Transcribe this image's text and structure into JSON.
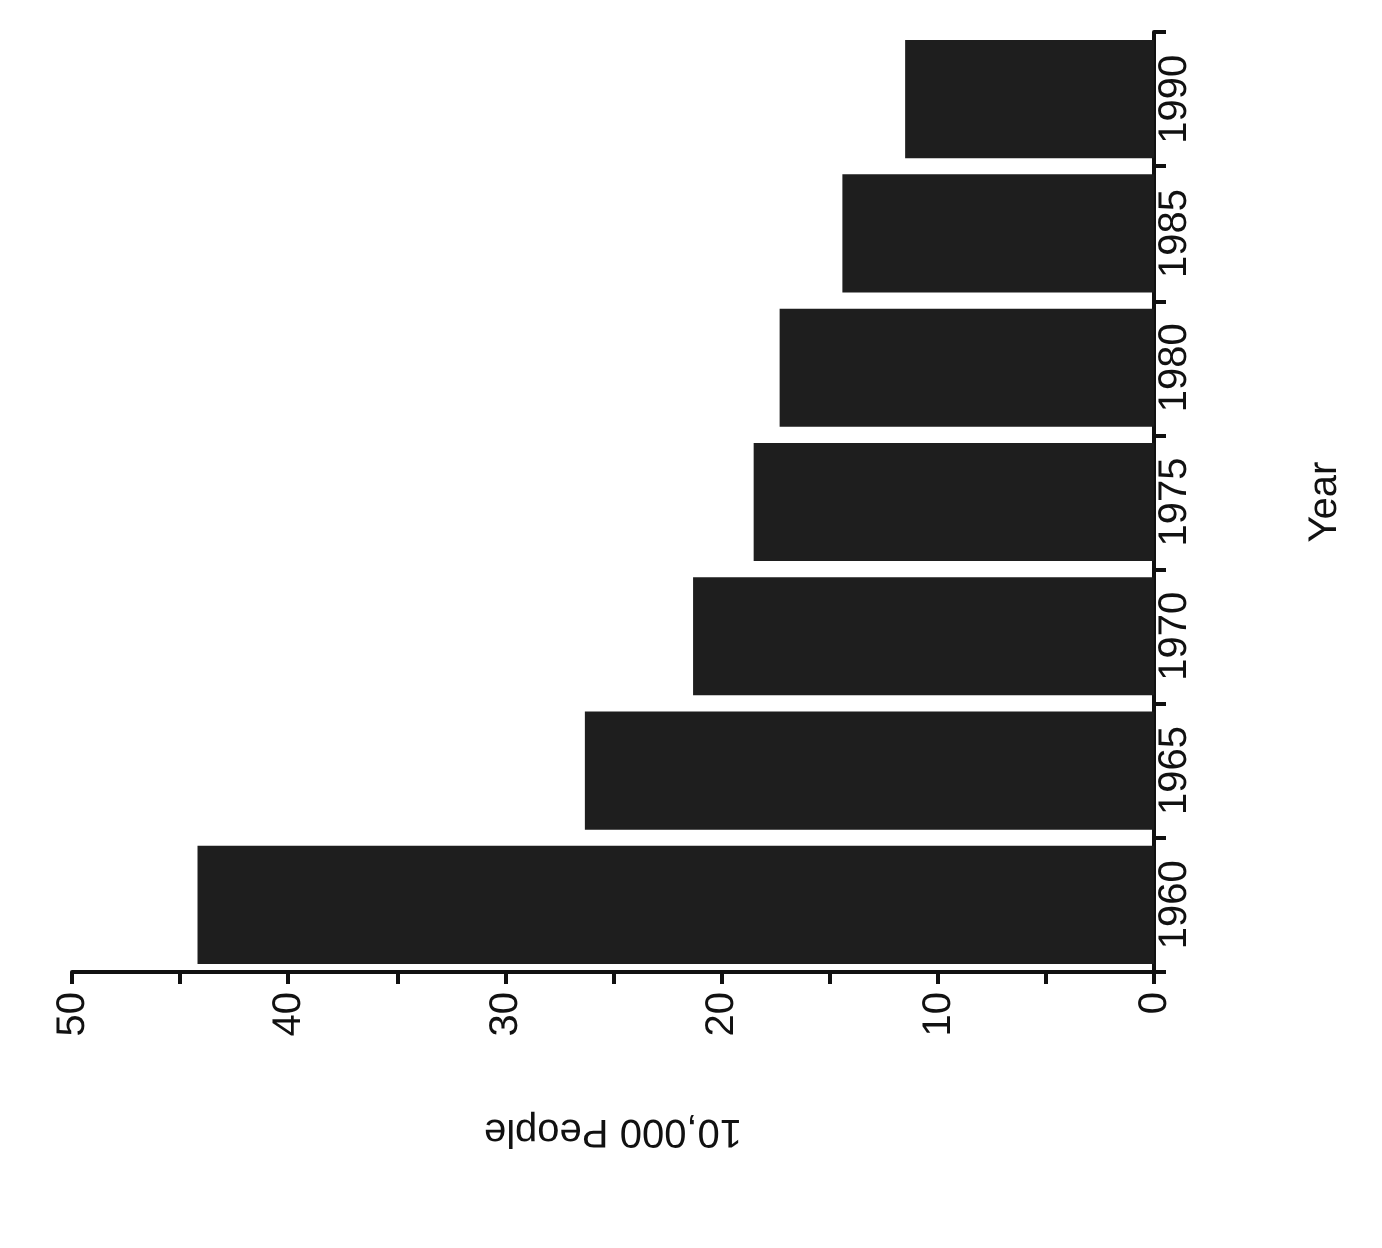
{
  "chart_data": {
    "type": "bar",
    "orientation": "horizontal",
    "xlabel": "10,000 People",
    "ylabel": "Year",
    "categories": [
      "1990",
      "1985",
      "1980",
      "1975",
      "1970",
      "1965",
      "1960"
    ],
    "values": [
      11.5,
      14.4,
      17.3,
      18.5,
      21.3,
      26.3,
      44.2
    ],
    "color": "#1e1e1e",
    "xlim": [
      50,
      0
    ],
    "xticks": [
      50,
      {
        "value": 45,
        "label": null
      },
      40,
      {
        "value": 35,
        "label": null
      },
      30,
      {
        "value": 25,
        "label": null
      },
      20,
      {
        "value": 15,
        "label": null
      },
      10,
      {
        "value": 5,
        "label": null
      },
      0
    ],
    "grid": false
  }
}
